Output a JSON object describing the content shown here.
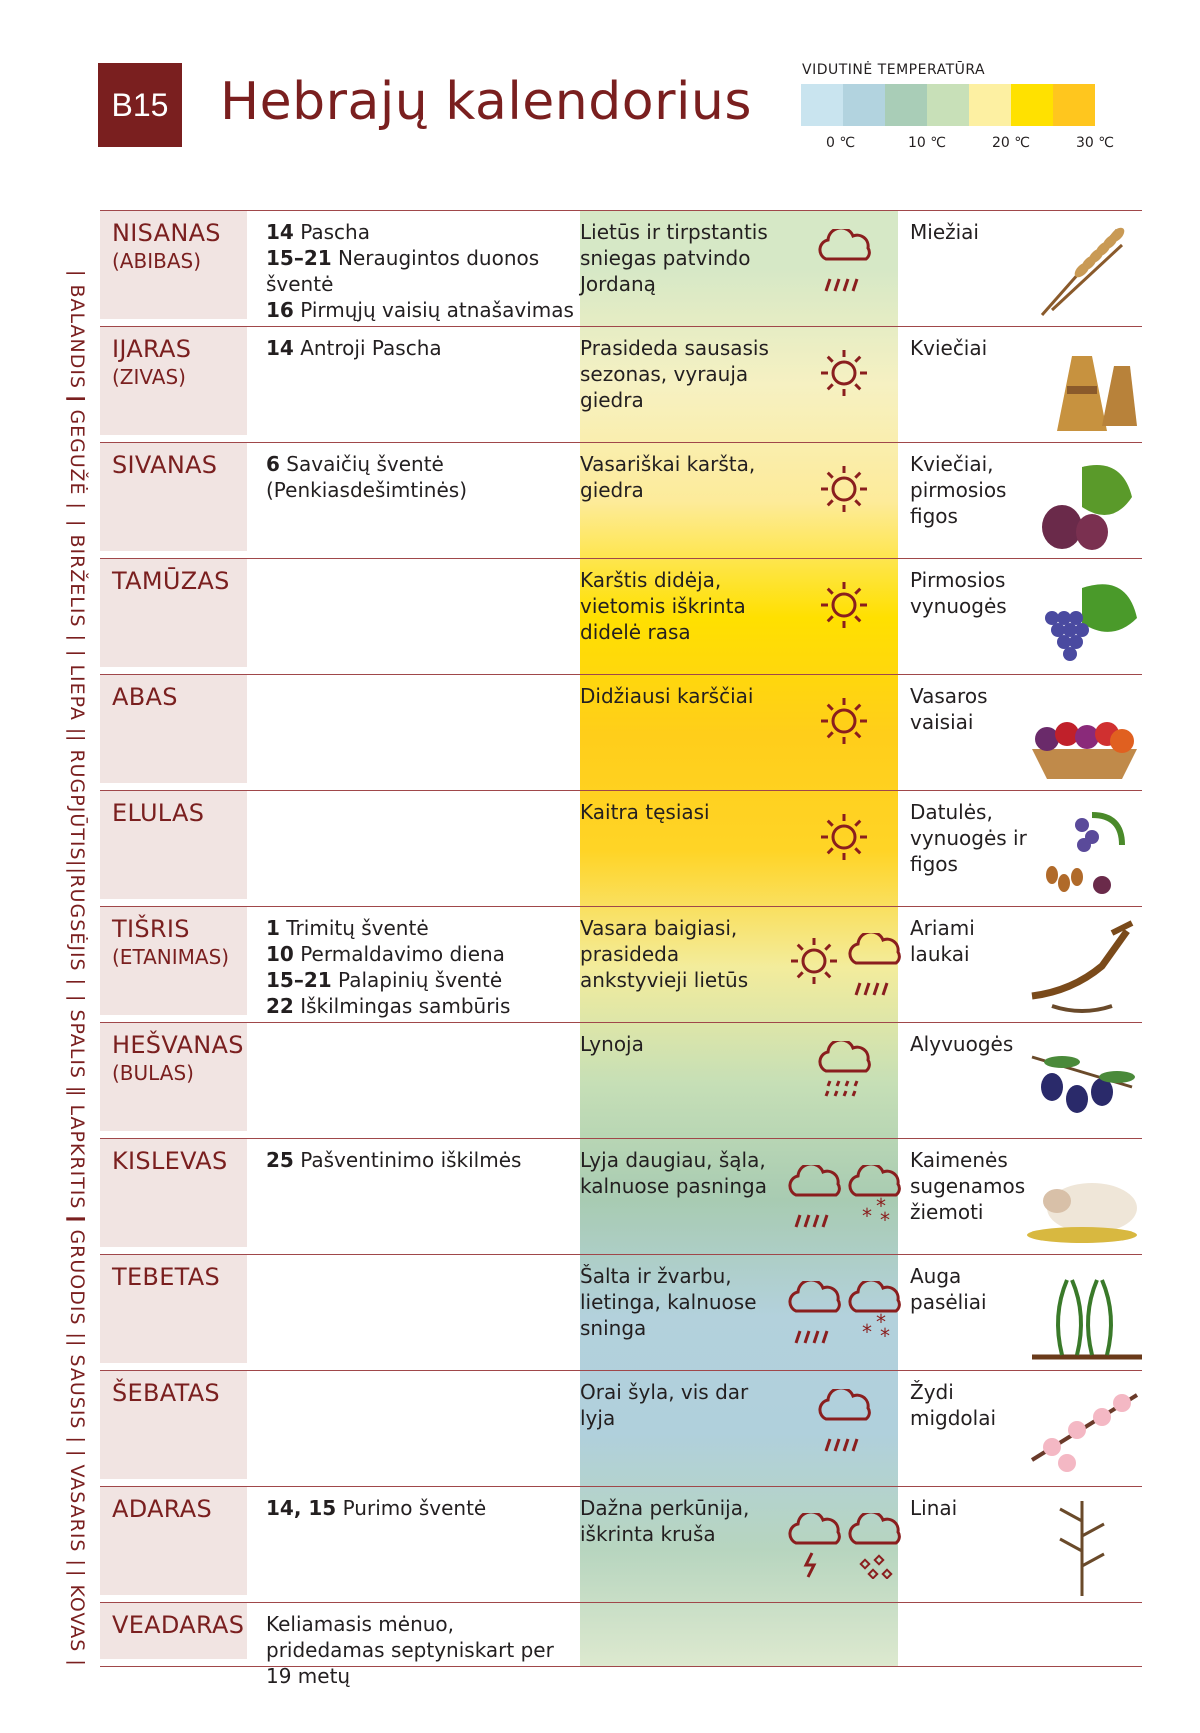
{
  "header": {
    "badge": "B15",
    "title": "Hebrajų kalendorius",
    "legend_title": "VIDUTINĖ TEMPERATŪRA",
    "legend_colors": [
      "#c9e4ef",
      "#b2d3df",
      "#a9cdb7",
      "#c8e0b8",
      "#fdf0a2",
      "#ffe100",
      "#ffc61e"
    ],
    "legend_ticks": [
      "0 ℃",
      "10 ℃",
      "20 ℃",
      "30 ℃"
    ]
  },
  "side_months": [
    "BALANDIS",
    "GEGUŽĖ",
    "BIRŽELIS",
    "LIEPA",
    "RUGPJŪTIS",
    "RUGSĖJIS",
    "SPALIS",
    "LAPKRITIS",
    "GRUODIS",
    "SAUSIS",
    "VASARIS",
    "KOVAS"
  ],
  "rows": [
    {
      "month": "NISANAS",
      "alt": "(ABIBAS)",
      "events": [
        {
          "n": "14",
          "t": " Pascha"
        },
        {
          "n": "15–21",
          "t": " Neraugintos duonos šventė"
        },
        {
          "n": "16",
          "t": " Pirmųjų vaisių atnašavimas"
        }
      ],
      "weather": "Lietūs ir tirpstantis sniegas patvindo Jordaną",
      "icons": [
        "rain-icon"
      ],
      "crops": "Miežiai",
      "crop_icon": "barley-icon",
      "band": "#d6e8c6"
    },
    {
      "month": "IJARAS",
      "alt": "(ZIVAS)",
      "events": [
        {
          "n": "14",
          "t": " Antroji Pascha"
        }
      ],
      "weather": "Prasideda sausasis sezonas, vyrauja giedra",
      "icons": [
        "sun-icon"
      ],
      "crops": "Kviečiai",
      "crop_icon": "wheat-sheaf-icon",
      "band": "#f6f1c2"
    },
    {
      "month": "SIVANAS",
      "alt": "",
      "events": [
        {
          "n": "6",
          "t": " Savaičių šventė (Penkiasdešimtinės)"
        }
      ],
      "weather": "Vasariškai karšta, giedra",
      "icons": [
        "sun-icon"
      ],
      "crops": "Kviečiai, pirmosios figos",
      "crop_icon": "fig-icon",
      "band": "#fdeb9a"
    },
    {
      "month": "TAMŪZAS",
      "alt": "",
      "events": [],
      "weather": "Karštis didėja, vietomis iškrinta didelė rasa",
      "icons": [
        "sun-icon"
      ],
      "crops": "Pirmosios vynuogės",
      "crop_icon": "grapes-icon",
      "band": "#ffe000"
    },
    {
      "month": "ABAS",
      "alt": "",
      "events": [],
      "weather": "Didžiausi karščiai",
      "icons": [
        "sun-icon"
      ],
      "crops": "Vasaros vaisiai",
      "crop_icon": "fruit-basket-icon",
      "band": "#ffce1a"
    },
    {
      "month": "ELULAS",
      "alt": "",
      "events": [],
      "weather": "Kaitra tęsiasi",
      "icons": [
        "sun-icon"
      ],
      "crops": "Datulės, vynuogės ir figos",
      "crop_icon": "dates-icon",
      "band": "#ffd426"
    },
    {
      "month": "TIŠRIS",
      "alt": "(ETANIMAS)",
      "events": [
        {
          "n": "1",
          "t": " Trimitų šventė"
        },
        {
          "n": "10",
          "t": " Permaldavimo diena"
        },
        {
          "n": "15–21",
          "t": " Palapinių šventė"
        },
        {
          "n": "22",
          "t": " Iškilmingas sambūris"
        }
      ],
      "weather": "Vasara baigiasi, prasideda ankstyvieji lietūs",
      "icons": [
        "sun-icon",
        "rain-icon"
      ],
      "crops": "Ariami laukai",
      "crop_icon": "plough-icon",
      "band": "#f3ec9c"
    },
    {
      "month": "HEŠVANAS",
      "alt": "(BULAS)",
      "events": [],
      "weather": "Lynoja",
      "icons": [
        "drizzle-icon"
      ],
      "crops": "Alyvuogės",
      "crop_icon": "olive-icon",
      "band": "#c6dfb6"
    },
    {
      "month": "KISLEVAS",
      "alt": "",
      "events": [
        {
          "n": "25",
          "t": " Pašventinimo iškilmės"
        }
      ],
      "weather": "Lyja daugiau, šąla, kalnuose pasninga",
      "icons": [
        "rain-icon",
        "snow-icon"
      ],
      "crops": "Kaimenės sugenamos žiemoti",
      "crop_icon": "sheep-icon",
      "band": "#a8cbb2"
    },
    {
      "month": "TEBETAS",
      "alt": "",
      "events": [],
      "weather": "Šalta ir žvarbu, lietinga, kalnuose sninga",
      "icons": [
        "rain-icon",
        "snow-icon"
      ],
      "crops": "Auga pasėliai",
      "crop_icon": "sprouts-icon",
      "band": "#b3d1dc"
    },
    {
      "month": "ŠEBATAS",
      "alt": "",
      "events": [],
      "weather": "Orai šyla, vis dar lyja",
      "icons": [
        "rain-icon"
      ],
      "crops": "Žydi migdolai",
      "crop_icon": "almond-blossom-icon",
      "band": "#b0d0dc"
    },
    {
      "month": "ADARAS",
      "alt": "",
      "events": [
        {
          "n": "14, 15",
          "t": " Purimo šventė"
        }
      ],
      "weather": "Dažna perkūnija, iškrinta kruša",
      "icons": [
        "thunder-icon",
        "hail-icon"
      ],
      "crops": "Linai",
      "crop_icon": "flax-icon",
      "band": "#b7d5bf"
    },
    {
      "month": "VEADARAS",
      "alt": "",
      "events": [
        {
          "n": "",
          "t": "Keliamasis mėnuo, pridedamas septyniskart per 19 metų"
        }
      ],
      "weather": "",
      "icons": [],
      "crops": "",
      "crop_icon": "",
      "band": "#dde9cf"
    }
  ]
}
